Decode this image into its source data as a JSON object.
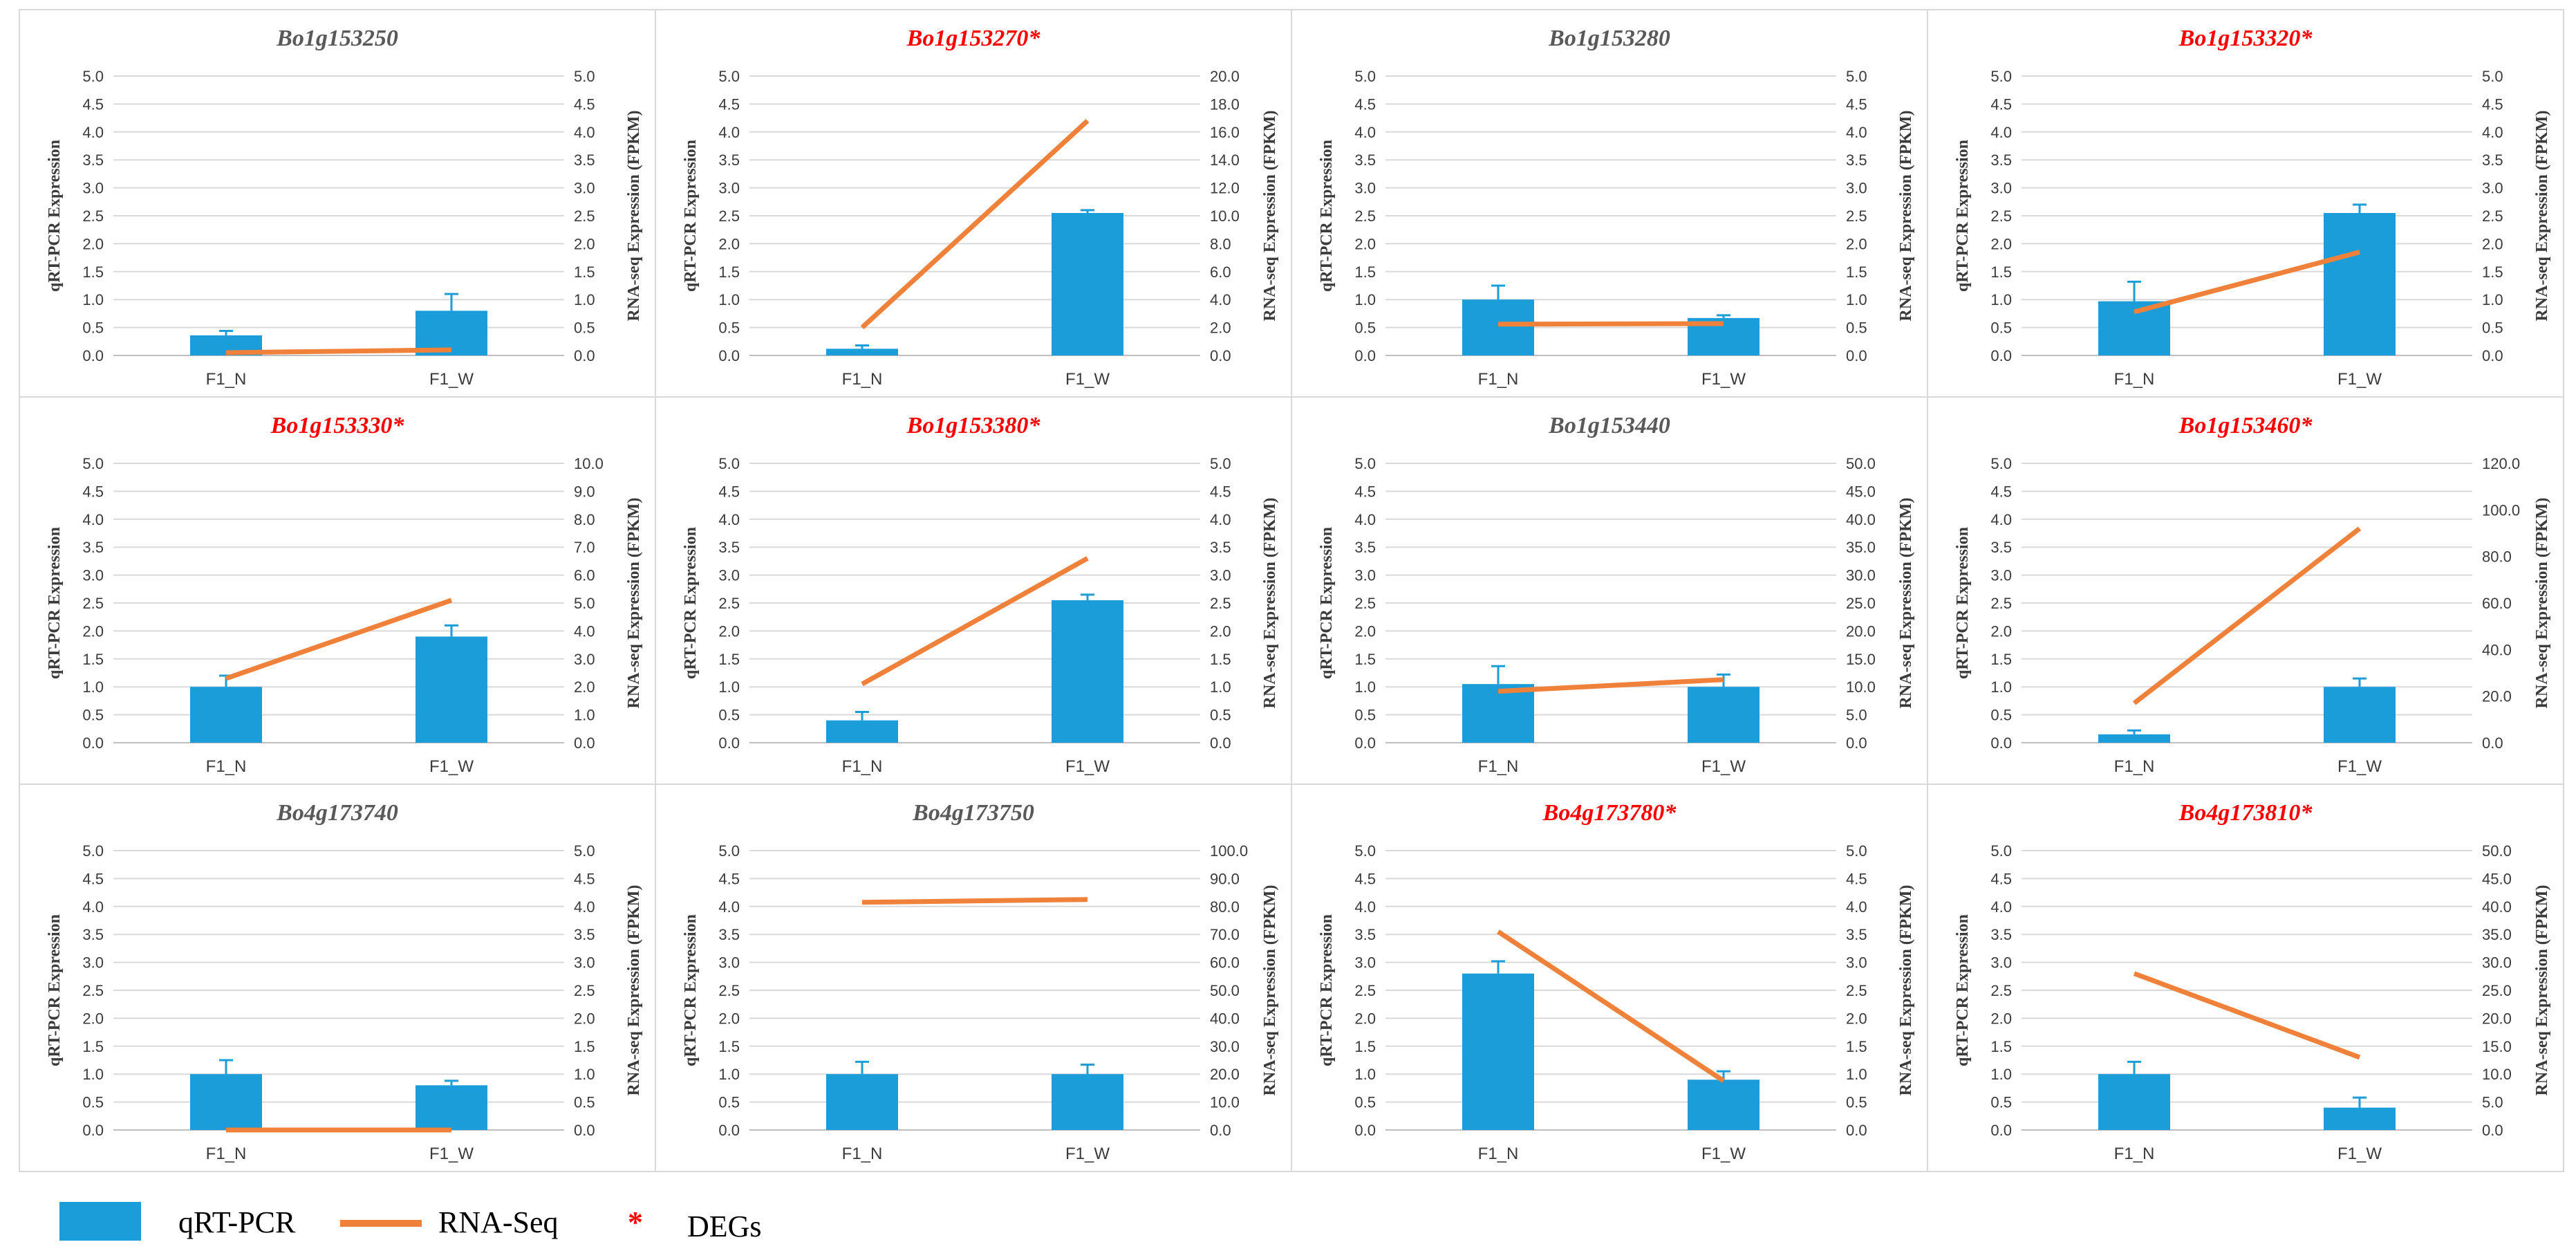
{
  "legend": {
    "bar_label": "qRT-PCR",
    "line_label": "RNA-Seq",
    "deg_marker": "*",
    "deg_label": "DEGs"
  },
  "colors": {
    "bar": "#1b9dd9",
    "line": "#f0813a",
    "deg_title": "#ff0000",
    "normal_title": "#595959",
    "grid": "#d9d9d9",
    "axis_text": "#3b3b3b"
  },
  "chart_data": [
    {
      "type": "bar+line",
      "title": "Bo1g153250",
      "deg": false,
      "categories": [
        "F1_N",
        "F1_W"
      ],
      "ylabel": "qRT-PCR Expression",
      "y2label": "RNA-seq Expression (FPKM)",
      "ylim": [
        0,
        5
      ],
      "y_step": 0.5,
      "y2lim": [
        0,
        5
      ],
      "y2_step": 0.5,
      "y2_decimals": 1,
      "series": [
        {
          "type": "bar",
          "values": [
            0.36,
            0.8
          ],
          "errors": [
            0.08,
            0.3
          ]
        },
        {
          "type": "line",
          "values": [
            0.05,
            0.1
          ]
        }
      ]
    },
    {
      "type": "bar+line",
      "title": "Bo1g153270*",
      "deg": true,
      "categories": [
        "F1_N",
        "F1_W"
      ],
      "ylabel": "qRT-PCR Expression",
      "y2label": "RNA-seq Expression (FPKM)",
      "ylim": [
        0,
        5
      ],
      "y_step": 0.5,
      "y2lim": [
        0,
        20
      ],
      "y2_step": 2,
      "y2_decimals": 1,
      "series": [
        {
          "type": "bar",
          "values": [
            0.12,
            2.55
          ],
          "errors": [
            0.06,
            0.05
          ]
        },
        {
          "type": "line",
          "values": [
            2.0,
            16.8
          ]
        }
      ]
    },
    {
      "type": "bar+line",
      "title": "Bo1g153280",
      "deg": false,
      "categories": [
        "F1_N",
        "F1_W"
      ],
      "ylabel": "qRT-PCR Expression",
      "y2label": "RNA-seq Expression (FPKM)",
      "ylim": [
        0,
        5
      ],
      "y_step": 0.5,
      "y2lim": [
        0,
        5
      ],
      "y2_step": 0.5,
      "y2_decimals": 1,
      "series": [
        {
          "type": "bar",
          "values": [
            1.0,
            0.67
          ],
          "errors": [
            0.25,
            0.05
          ]
        },
        {
          "type": "line",
          "values": [
            0.56,
            0.57
          ]
        }
      ]
    },
    {
      "type": "bar+line",
      "title": "Bo1g153320*",
      "deg": true,
      "categories": [
        "F1_N",
        "F1_W"
      ],
      "ylabel": "qRT-PCR Expression",
      "y2label": "RNA-seq Expression (FPKM)",
      "ylim": [
        0,
        5
      ],
      "y_step": 0.5,
      "y2lim": [
        0,
        5
      ],
      "y2_step": 0.5,
      "y2_decimals": 1,
      "series": [
        {
          "type": "bar",
          "values": [
            0.97,
            2.55
          ],
          "errors": [
            0.35,
            0.15
          ]
        },
        {
          "type": "line",
          "values": [
            0.78,
            1.85
          ]
        }
      ]
    },
    {
      "type": "bar+line",
      "title": "Bo1g153330*",
      "deg": true,
      "categories": [
        "F1_N",
        "F1_W"
      ],
      "ylabel": "qRT-PCR Expression",
      "y2label": "RNA-seq Expression (FPKM)",
      "ylim": [
        0,
        5
      ],
      "y_step": 0.5,
      "y2lim": [
        0,
        10
      ],
      "y2_step": 1,
      "y2_decimals": 1,
      "series": [
        {
          "type": "bar",
          "values": [
            1.0,
            1.9
          ],
          "errors": [
            0.2,
            0.2
          ]
        },
        {
          "type": "line",
          "values": [
            2.3,
            5.1
          ]
        }
      ]
    },
    {
      "type": "bar+line",
      "title": "Bo1g153380*",
      "deg": true,
      "categories": [
        "F1_N",
        "F1_W"
      ],
      "ylabel": "qRT-PCR Expression",
      "y2label": "RNA-seq Expression (FPKM)",
      "ylim": [
        0,
        5
      ],
      "y_step": 0.5,
      "y2lim": [
        0,
        5
      ],
      "y2_step": 0.5,
      "y2_decimals": 1,
      "series": [
        {
          "type": "bar",
          "values": [
            0.4,
            2.55
          ],
          "errors": [
            0.15,
            0.1
          ]
        },
        {
          "type": "line",
          "values": [
            1.05,
            3.3
          ]
        }
      ]
    },
    {
      "type": "bar+line",
      "title": "Bo1g153440",
      "deg": false,
      "categories": [
        "F1_N",
        "F1_W"
      ],
      "ylabel": "qRT-PCR Expression",
      "y2label": "RNA-seq Expression (FPKM)",
      "ylim": [
        0,
        5
      ],
      "y_step": 0.5,
      "y2lim": [
        0,
        50
      ],
      "y2_step": 5,
      "y2_decimals": 1,
      "series": [
        {
          "type": "bar",
          "values": [
            1.05,
            1.0
          ],
          "errors": [
            0.32,
            0.22
          ]
        },
        {
          "type": "line",
          "values": [
            9.2,
            11.3
          ]
        }
      ]
    },
    {
      "type": "bar+line",
      "title": "Bo1g153460*",
      "deg": true,
      "categories": [
        "F1_N",
        "F1_W"
      ],
      "ylabel": "qRT-PCR Expression",
      "y2label": "RNA-seq Expression (FPKM)",
      "ylim": [
        0,
        5
      ],
      "y_step": 0.5,
      "y2lim": [
        0,
        120
      ],
      "y2_step": 20,
      "y2_decimals": 1,
      "series": [
        {
          "type": "bar",
          "values": [
            0.15,
            1.0
          ],
          "errors": [
            0.07,
            0.15
          ]
        },
        {
          "type": "line",
          "values": [
            17,
            92
          ]
        }
      ]
    },
    {
      "type": "bar+line",
      "title": "Bo4g173740",
      "deg": false,
      "categories": [
        "F1_N",
        "F1_W"
      ],
      "ylabel": "qRT-PCR Expression",
      "y2label": "RNA-seq Expression (FPKM)",
      "ylim": [
        0,
        5
      ],
      "y_step": 0.5,
      "y2lim": [
        0,
        5
      ],
      "y2_step": 0.5,
      "y2_decimals": 1,
      "series": [
        {
          "type": "bar",
          "values": [
            1.0,
            0.8
          ],
          "errors": [
            0.25,
            0.08
          ]
        },
        {
          "type": "line",
          "values": [
            0.0,
            0.0
          ]
        }
      ]
    },
    {
      "type": "bar+line",
      "title": "Bo4g173750",
      "deg": false,
      "categories": [
        "F1_N",
        "F1_W"
      ],
      "ylabel": "qRT-PCR Expression",
      "y2label": "RNA-seq Expression (FPKM)",
      "ylim": [
        0,
        5
      ],
      "y_step": 0.5,
      "y2lim": [
        0,
        100
      ],
      "y2_step": 10,
      "y2_decimals": 1,
      "series": [
        {
          "type": "bar",
          "values": [
            1.0,
            1.0
          ],
          "errors": [
            0.22,
            0.17
          ]
        },
        {
          "type": "line",
          "values": [
            81.5,
            82.5
          ]
        }
      ]
    },
    {
      "type": "bar+line",
      "title": "Bo4g173780*",
      "deg": true,
      "categories": [
        "F1_N",
        "F1_W"
      ],
      "ylabel": "qRT-PCR Expression",
      "y2label": "RNA-seq Expression (FPKM)",
      "ylim": [
        0,
        5
      ],
      "y_step": 0.5,
      "y2lim": [
        0,
        5
      ],
      "y2_step": 0.5,
      "y2_decimals": 1,
      "series": [
        {
          "type": "bar",
          "values": [
            2.8,
            0.9
          ],
          "errors": [
            0.22,
            0.15
          ]
        },
        {
          "type": "line",
          "values": [
            3.55,
            0.88
          ]
        }
      ]
    },
    {
      "type": "bar+line",
      "title": "Bo4g173810*",
      "deg": true,
      "categories": [
        "F1_N",
        "F1_W"
      ],
      "ylabel": "qRT-PCR Expression",
      "y2label": "RNA-seq Expression (FPKM)",
      "ylim": [
        0,
        5
      ],
      "y_step": 0.5,
      "y2lim": [
        0,
        50
      ],
      "y2_step": 5,
      "y2_decimals": 1,
      "series": [
        {
          "type": "bar",
          "values": [
            1.0,
            0.4
          ],
          "errors": [
            0.22,
            0.18
          ]
        },
        {
          "type": "line",
          "values": [
            28,
            13
          ]
        }
      ]
    }
  ]
}
